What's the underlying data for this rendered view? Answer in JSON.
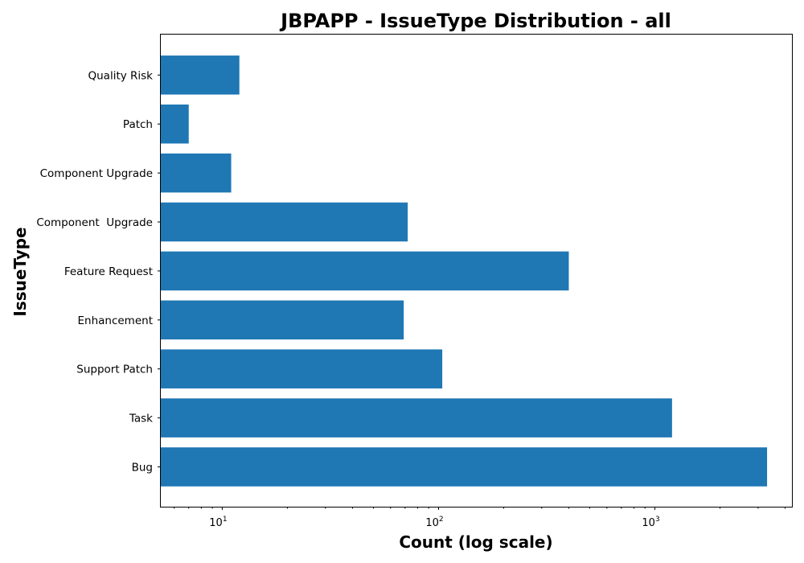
{
  "chart_data": {
    "type": "bar",
    "orientation": "horizontal",
    "title": "JBPAPP - IssueType Distribution - all",
    "xlabel": "Count (log scale)",
    "ylabel": "IssueType",
    "xscale": "log",
    "xlim": [
      5.2,
      4300
    ],
    "x_ticks": [
      {
        "base": "10",
        "exp": "1",
        "value": 10
      },
      {
        "base": "10",
        "exp": "2",
        "value": 100
      },
      {
        "base": "10",
        "exp": "3",
        "value": 1000
      }
    ],
    "categories": [
      "Bug",
      "Task",
      "Support Patch",
      "Enhancement",
      "Feature Request",
      "Component  Upgrade",
      "Component Upgrade",
      "Patch",
      "Quality Risk"
    ],
    "values": [
      3300,
      1200,
      104,
      69,
      400,
      72,
      11,
      7,
      12
    ],
    "color": "#1f77b4",
    "grid": false,
    "legend": false
  }
}
